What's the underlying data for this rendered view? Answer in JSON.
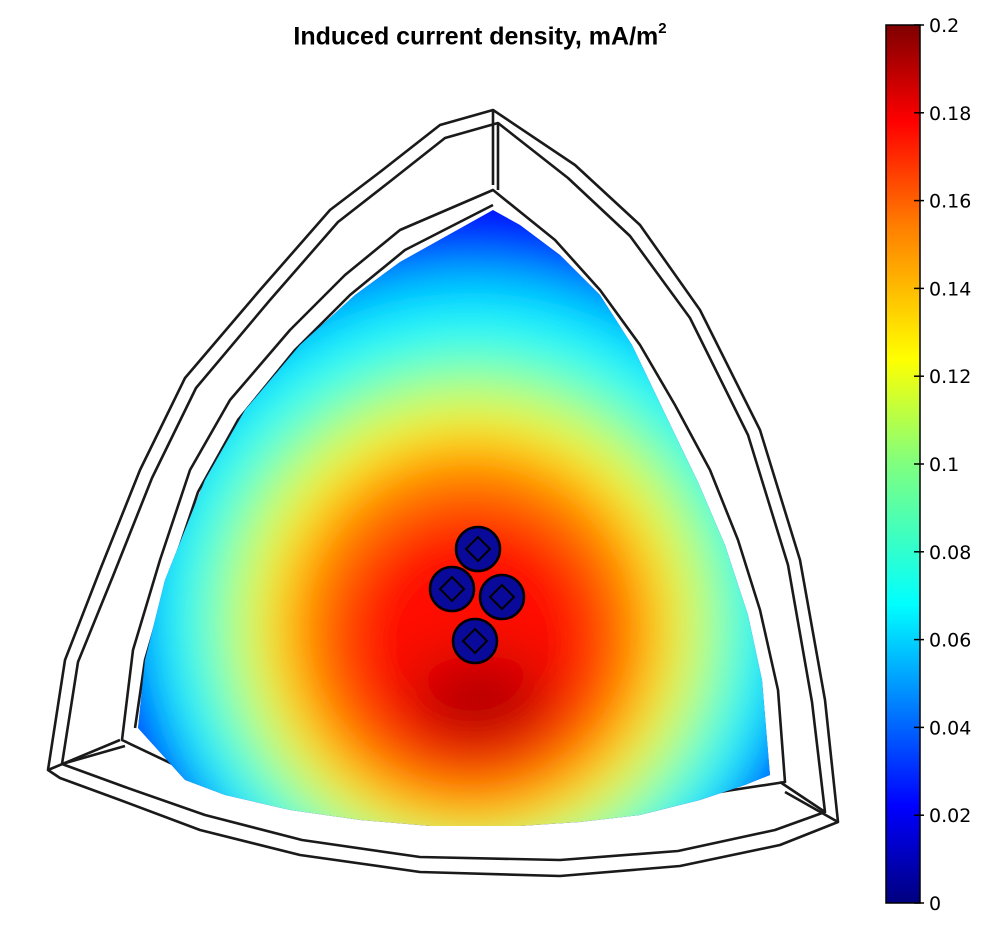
{
  "chart_data": {
    "type": "heatmap",
    "title": "Induced current density, mA/m",
    "title_superscript": "2",
    "colorbar": {
      "min": 0,
      "max": 0.2,
      "ticks": [
        {
          "value": 0.2,
          "label": "0.2"
        },
        {
          "value": 0.18,
          "label": "0.18"
        },
        {
          "value": 0.16,
          "label": "0.16"
        },
        {
          "value": 0.14,
          "label": "0.14"
        },
        {
          "value": 0.12,
          "label": "0.12"
        },
        {
          "value": 0.1,
          "label": "0.1"
        },
        {
          "value": 0.08,
          "label": "0.08"
        },
        {
          "value": 0.06,
          "label": "0.06"
        },
        {
          "value": 0.04,
          "label": "0.04"
        },
        {
          "value": 0.02,
          "label": "0.02"
        },
        {
          "value": 0,
          "label": "0"
        }
      ],
      "colormap": "jet",
      "colormap_stops": [
        "#00007f",
        "#0000ff",
        "#007fff",
        "#00ffff",
        "#7fff7f",
        "#ffff00",
        "#ff7f00",
        "#ff0000",
        "#7f0000"
      ]
    },
    "field": {
      "peak_value": 0.19,
      "corner_value": 0.02,
      "conductors": 4,
      "conductor_value": 0.02
    }
  }
}
